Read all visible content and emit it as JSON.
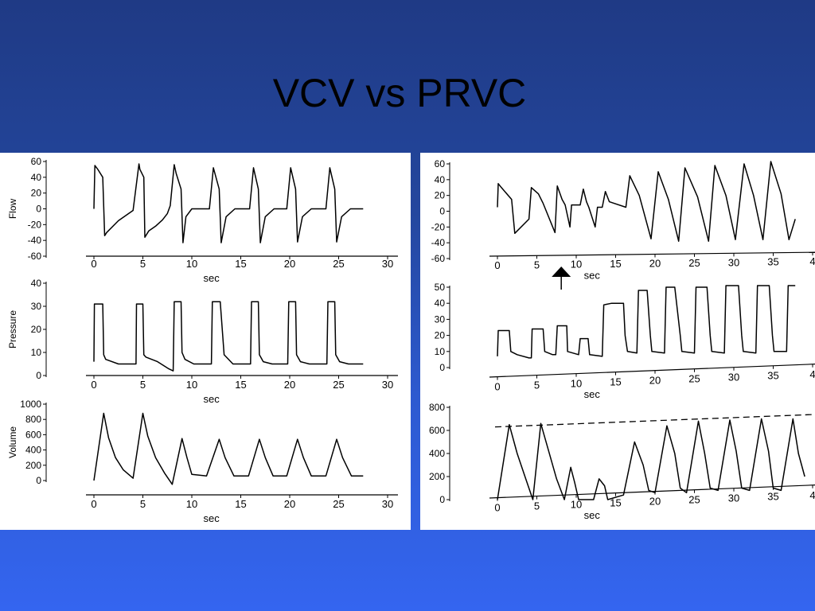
{
  "slide": {
    "title": "VCV vs PRVC",
    "colors": {
      "background_top": "#1f3a85",
      "background_bottom": "#3465f0",
      "panel": "#ffffff",
      "trace": "#000000"
    }
  },
  "chart_data": [
    {
      "panel": "left",
      "title": "VCV",
      "xlabel": "sec",
      "xlim": [
        0,
        30
      ],
      "xticks": [
        "0",
        "5",
        "10",
        "15",
        "20",
        "25",
        "30"
      ],
      "charts": [
        {
          "type": "line",
          "ylabel": "Flow",
          "ylim": [
            -60,
            60
          ],
          "yticks": [
            "60",
            "40",
            "20",
            "0",
            "-20",
            "-40",
            "-60"
          ],
          "x": [
            0,
            0.1,
            0.4,
            0.9,
            1.1,
            1.3,
            2.5,
            4.0,
            4.6,
            4.7,
            5.1,
            5.2,
            5.6,
            6.3,
            7.0,
            7.5,
            7.8,
            8.2,
            8.4,
            8.9,
            9.1,
            9.4,
            10.0,
            11.8,
            12.2,
            12.8,
            13.0,
            13.5,
            14.4,
            15.9,
            16.3,
            16.8,
            17.0,
            17.5,
            18.4,
            19.7,
            20.1,
            20.6,
            20.8,
            21.3,
            22.2,
            23.7,
            24.1,
            24.6,
            24.8,
            25.3,
            26.2,
            27.5
          ],
          "values": [
            0,
            55,
            50,
            40,
            -34,
            -30,
            -15,
            -2,
            57,
            50,
            40,
            -36,
            -28,
            -22,
            -14,
            -6,
            4,
            56,
            45,
            25,
            -43,
            -10,
            0,
            0,
            52,
            25,
            -43,
            -10,
            0,
            0,
            52,
            25,
            -43,
            -10,
            0,
            0,
            52,
            25,
            -42,
            -10,
            0,
            0,
            52,
            25,
            -42,
            -10,
            0,
            0
          ]
        },
        {
          "type": "line",
          "ylabel": "Pressure",
          "ylim": [
            0,
            40
          ],
          "yticks": [
            "40",
            "30",
            "20",
            "10",
            "0"
          ],
          "x": [
            0,
            0.05,
            0.2,
            0.9,
            1.0,
            1.2,
            2.5,
            4.0,
            4.3,
            4.35,
            4.4,
            5.0,
            5.1,
            5.3,
            6.5,
            7.6,
            8.1,
            8.2,
            8.5,
            8.9,
            9.0,
            9.3,
            10.2,
            11.8,
            12.0,
            12.1,
            12.8,
            12.9,
            13.3,
            14.2,
            15.8,
            16.0,
            16.1,
            16.8,
            16.9,
            17.3,
            18.2,
            19.6,
            19.8,
            19.9,
            20.6,
            20.7,
            21.1,
            22.0,
            23.6,
            23.8,
            23.9,
            24.6,
            24.7,
            25.1,
            26.0,
            27.5
          ],
          "values": [
            6,
            31,
            31,
            31,
            9,
            7,
            5,
            5,
            5,
            31,
            31,
            31,
            9,
            8,
            6,
            3,
            2,
            32,
            32,
            32,
            10,
            7,
            5,
            5,
            5,
            32,
            32,
            32,
            9,
            5,
            5,
            5,
            32,
            32,
            9,
            6,
            5,
            5,
            5,
            32,
            32,
            9,
            6,
            5,
            5,
            5,
            32,
            32,
            9,
            6,
            5,
            5
          ]
        },
        {
          "type": "line",
          "ylabel": "Volume",
          "ylim": [
            0,
            1000
          ],
          "yticks": [
            "1000",
            "800",
            "600",
            "400",
            "200",
            "0"
          ],
          "x": [
            0,
            1.0,
            1.5,
            2.2,
            3.0,
            4.0,
            5.0,
            5.5,
            6.3,
            7.2,
            8.0,
            9.0,
            9.5,
            10.0,
            11.5,
            12.8,
            13.4,
            14.3,
            15.8,
            16.9,
            17.5,
            18.3,
            19.7,
            20.8,
            21.4,
            22.2,
            23.7,
            24.8,
            25.4,
            26.3,
            27.5
          ],
          "values": [
            0,
            880,
            560,
            300,
            140,
            30,
            880,
            580,
            300,
            100,
            -50,
            550,
            300,
            80,
            60,
            540,
            300,
            60,
            60,
            540,
            300,
            60,
            60,
            540,
            300,
            60,
            60,
            540,
            300,
            60,
            60
          ]
        }
      ]
    },
    {
      "panel": "right",
      "title": "PRVC",
      "xlabel": "sec",
      "xticks": [
        "0",
        "5",
        "10",
        "15",
        "20",
        "25",
        "30",
        "35",
        "4"
      ],
      "annotations": [
        "arrow at breath change (~8 sec)",
        "dashed target-volume line on Volume plot"
      ],
      "charts": [
        {
          "type": "line",
          "ylabel": "Flow",
          "ylim": [
            -60,
            60
          ],
          "yticks": [
            "60",
            "40",
            "20",
            "0",
            "-20",
            "-40",
            "-60"
          ],
          "x": [
            0,
            0.1,
            0.5,
            1.8,
            2.2,
            4.0,
            4.3,
            5.2,
            5.8,
            7.3,
            7.6,
            8.2,
            8.6,
            9.2,
            9.4,
            10.5,
            10.9,
            11.3,
            11.6,
            12.4,
            12.7,
            13.3,
            13.7,
            14.2,
            16.3,
            16.8,
            18.0,
            19.5,
            20.4,
            21.7,
            23.0,
            23.8,
            25.4,
            26.8,
            27.6,
            29.0,
            30.2,
            31.3,
            32.5,
            33.7,
            34.7,
            36.0,
            37.0,
            37.8
          ],
          "values": [
            5,
            35,
            30,
            15,
            -28,
            -10,
            30,
            22,
            10,
            -27,
            32,
            15,
            8,
            -20,
            8,
            8,
            28,
            12,
            5,
            -20,
            5,
            5,
            25,
            12,
            5,
            45,
            20,
            -35,
            50,
            15,
            -38,
            55,
            18,
            -38,
            58,
            20,
            -36,
            60,
            20,
            -36,
            63,
            22,
            -36,
            -10
          ]
        },
        {
          "type": "line",
          "ylabel": "Pressure",
          "ylim": [
            0,
            50
          ],
          "yticks": [
            "50",
            "40",
            "30",
            "20",
            "10",
            "0"
          ],
          "x": [
            0,
            0.1,
            1.5,
            1.7,
            2.5,
            4.0,
            4.3,
            4.4,
            5.8,
            6.0,
            7.0,
            7.4,
            7.6,
            8.8,
            8.9,
            10.3,
            10.5,
            11.5,
            11.7,
            13.3,
            13.5,
            14.5,
            16.0,
            16.2,
            16.5,
            17.7,
            17.9,
            19.0,
            19.4,
            19.6,
            21.2,
            21.4,
            22.5,
            23.2,
            23.4,
            25.0,
            25.2,
            26.6,
            27.0,
            27.2,
            28.8,
            29.0,
            30.6,
            31.0,
            31.2,
            32.8,
            33.0,
            34.5,
            34.9,
            35.1,
            36.7,
            36.9,
            37.8
          ],
          "values": [
            7,
            23,
            23,
            10,
            8,
            6,
            6,
            24,
            24,
            10,
            8,
            8,
            26,
            26,
            10,
            8,
            18,
            18,
            8,
            7,
            39,
            40,
            40,
            20,
            10,
            9,
            48,
            48,
            20,
            10,
            9,
            50,
            50,
            20,
            10,
            9,
            50,
            50,
            20,
            10,
            9,
            51,
            51,
            20,
            10,
            9,
            51,
            51,
            20,
            10,
            10,
            51,
            51
          ]
        },
        {
          "type": "line",
          "ylabel": "Volume",
          "ylim": [
            0,
            800
          ],
          "yticks": [
            "800",
            "600",
            "400",
            "200",
            "0"
          ],
          "x": [
            0,
            1.5,
            2.5,
            3.5,
            4.5,
            5.5,
            6.5,
            7.5,
            8.5,
            9.3,
            9.8,
            10.3,
            12.2,
            12.9,
            13.6,
            14.0,
            16.0,
            17.4,
            18.5,
            19.2,
            20.0,
            21.5,
            22.5,
            23.2,
            24.0,
            25.5,
            26.3,
            27.0,
            28.0,
            29.5,
            30.3,
            31.0,
            32.0,
            33.5,
            34.4,
            35.0,
            36.0,
            37.5,
            38.2,
            39.0
          ],
          "values": [
            0,
            650,
            400,
            200,
            0,
            660,
            420,
            180,
            0,
            280,
            150,
            0,
            0,
            180,
            120,
            0,
            40,
            500,
            300,
            80,
            60,
            640,
            400,
            100,
            60,
            680,
            400,
            100,
            80,
            690,
            420,
            100,
            80,
            700,
            420,
            100,
            80,
            700,
            400,
            200
          ]
        }
      ]
    }
  ]
}
